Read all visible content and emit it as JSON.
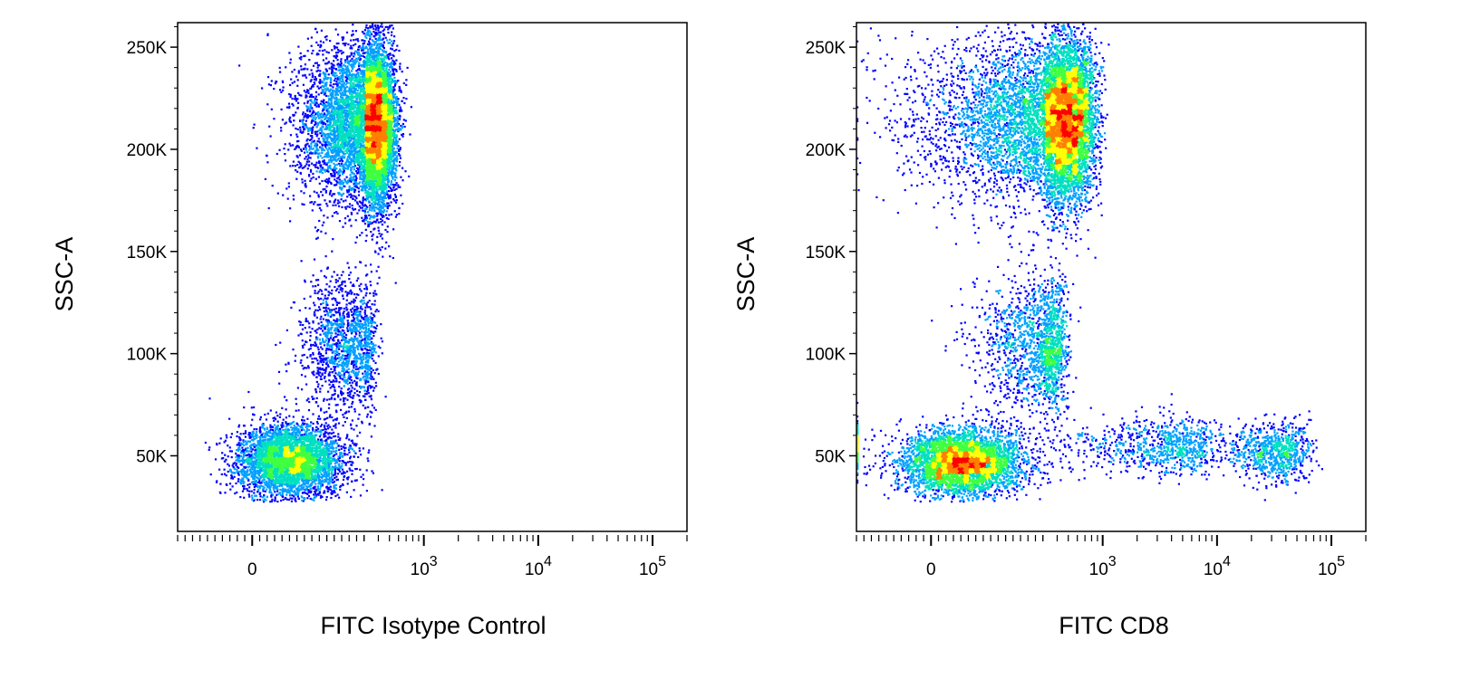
{
  "chart_data": [
    {
      "type": "scatter",
      "title": "",
      "xlabel": "FITC Isotype Control",
      "ylabel": "SSC-A",
      "xscale": "biexponential",
      "xlim": [
        -200,
        200000
      ],
      "ylim": [
        13000,
        262000
      ],
      "x_tick_labels": [
        {
          "value": 0,
          "base": "0",
          "exp": ""
        },
        {
          "value": 1000,
          "base": "10",
          "exp": "3"
        },
        {
          "value": 10000,
          "base": "10",
          "exp": "4"
        },
        {
          "value": 100000,
          "base": "10",
          "exp": "5"
        }
      ],
      "y_ticks": [
        50000,
        100000,
        150000,
        200000,
        250000
      ],
      "y_tick_labels": [
        "50K",
        "100K",
        "150K",
        "200K",
        "250K"
      ],
      "grid": false,
      "legend": "none",
      "colormap": [
        "#0000ff",
        "#00a0ff",
        "#00e0c0",
        "#40ff40",
        "#ffff00",
        "#ff8000",
        "#ff0000"
      ],
      "populations": [
        {
          "x_center": 100,
          "y_center": 48000,
          "x_spread": 70,
          "y_spread": 9000,
          "count": 4200
        },
        {
          "x_center": 250,
          "y_center": 105000,
          "x_spread": 60,
          "y_spread": 17000,
          "count": 1500
        },
        {
          "x_center": 340,
          "y_center": 213000,
          "x_spread": 100,
          "y_spread": 20000,
          "count": 9000
        }
      ]
    },
    {
      "type": "scatter",
      "title": "",
      "xlabel": "FITC CD8",
      "ylabel": "SSC-A",
      "xscale": "biexponential",
      "xlim": [
        -200,
        200000
      ],
      "ylim": [
        13000,
        262000
      ],
      "x_tick_labels": [
        {
          "value": 0,
          "base": "0",
          "exp": ""
        },
        {
          "value": 1000,
          "base": "10",
          "exp": "3"
        },
        {
          "value": 10000,
          "base": "10",
          "exp": "4"
        },
        {
          "value": 100000,
          "base": "10",
          "exp": "5"
        }
      ],
      "y_ticks": [
        50000,
        100000,
        150000,
        200000,
        250000
      ],
      "y_tick_labels": [
        "50K",
        "100K",
        "150K",
        "200K",
        "250K"
      ],
      "grid": false,
      "legend": "none",
      "colormap": [
        "#0000ff",
        "#00a0ff",
        "#00e0c0",
        "#40ff40",
        "#ffff00",
        "#ff8000",
        "#ff0000"
      ],
      "populations": [
        {
          "x_center": 80,
          "y_center": 47000,
          "x_spread": 80,
          "y_spread": 8000,
          "count": 4200
        },
        {
          "x_center": 300,
          "y_center": 105000,
          "x_spread": 90,
          "y_spread": 17000,
          "count": 1700
        },
        {
          "x_center": 400,
          "y_center": 215000,
          "x_spread": 200,
          "y_spread": 20000,
          "count": 8500
        },
        {
          "x_center": 2500,
          "y_center": 55000,
          "x_spread": 3000,
          "y_spread": 7000,
          "count": 1000
        },
        {
          "x_center": 30000,
          "y_center": 53000,
          "x_spread": 15000,
          "y_spread": 7000,
          "count": 900
        }
      ]
    }
  ]
}
